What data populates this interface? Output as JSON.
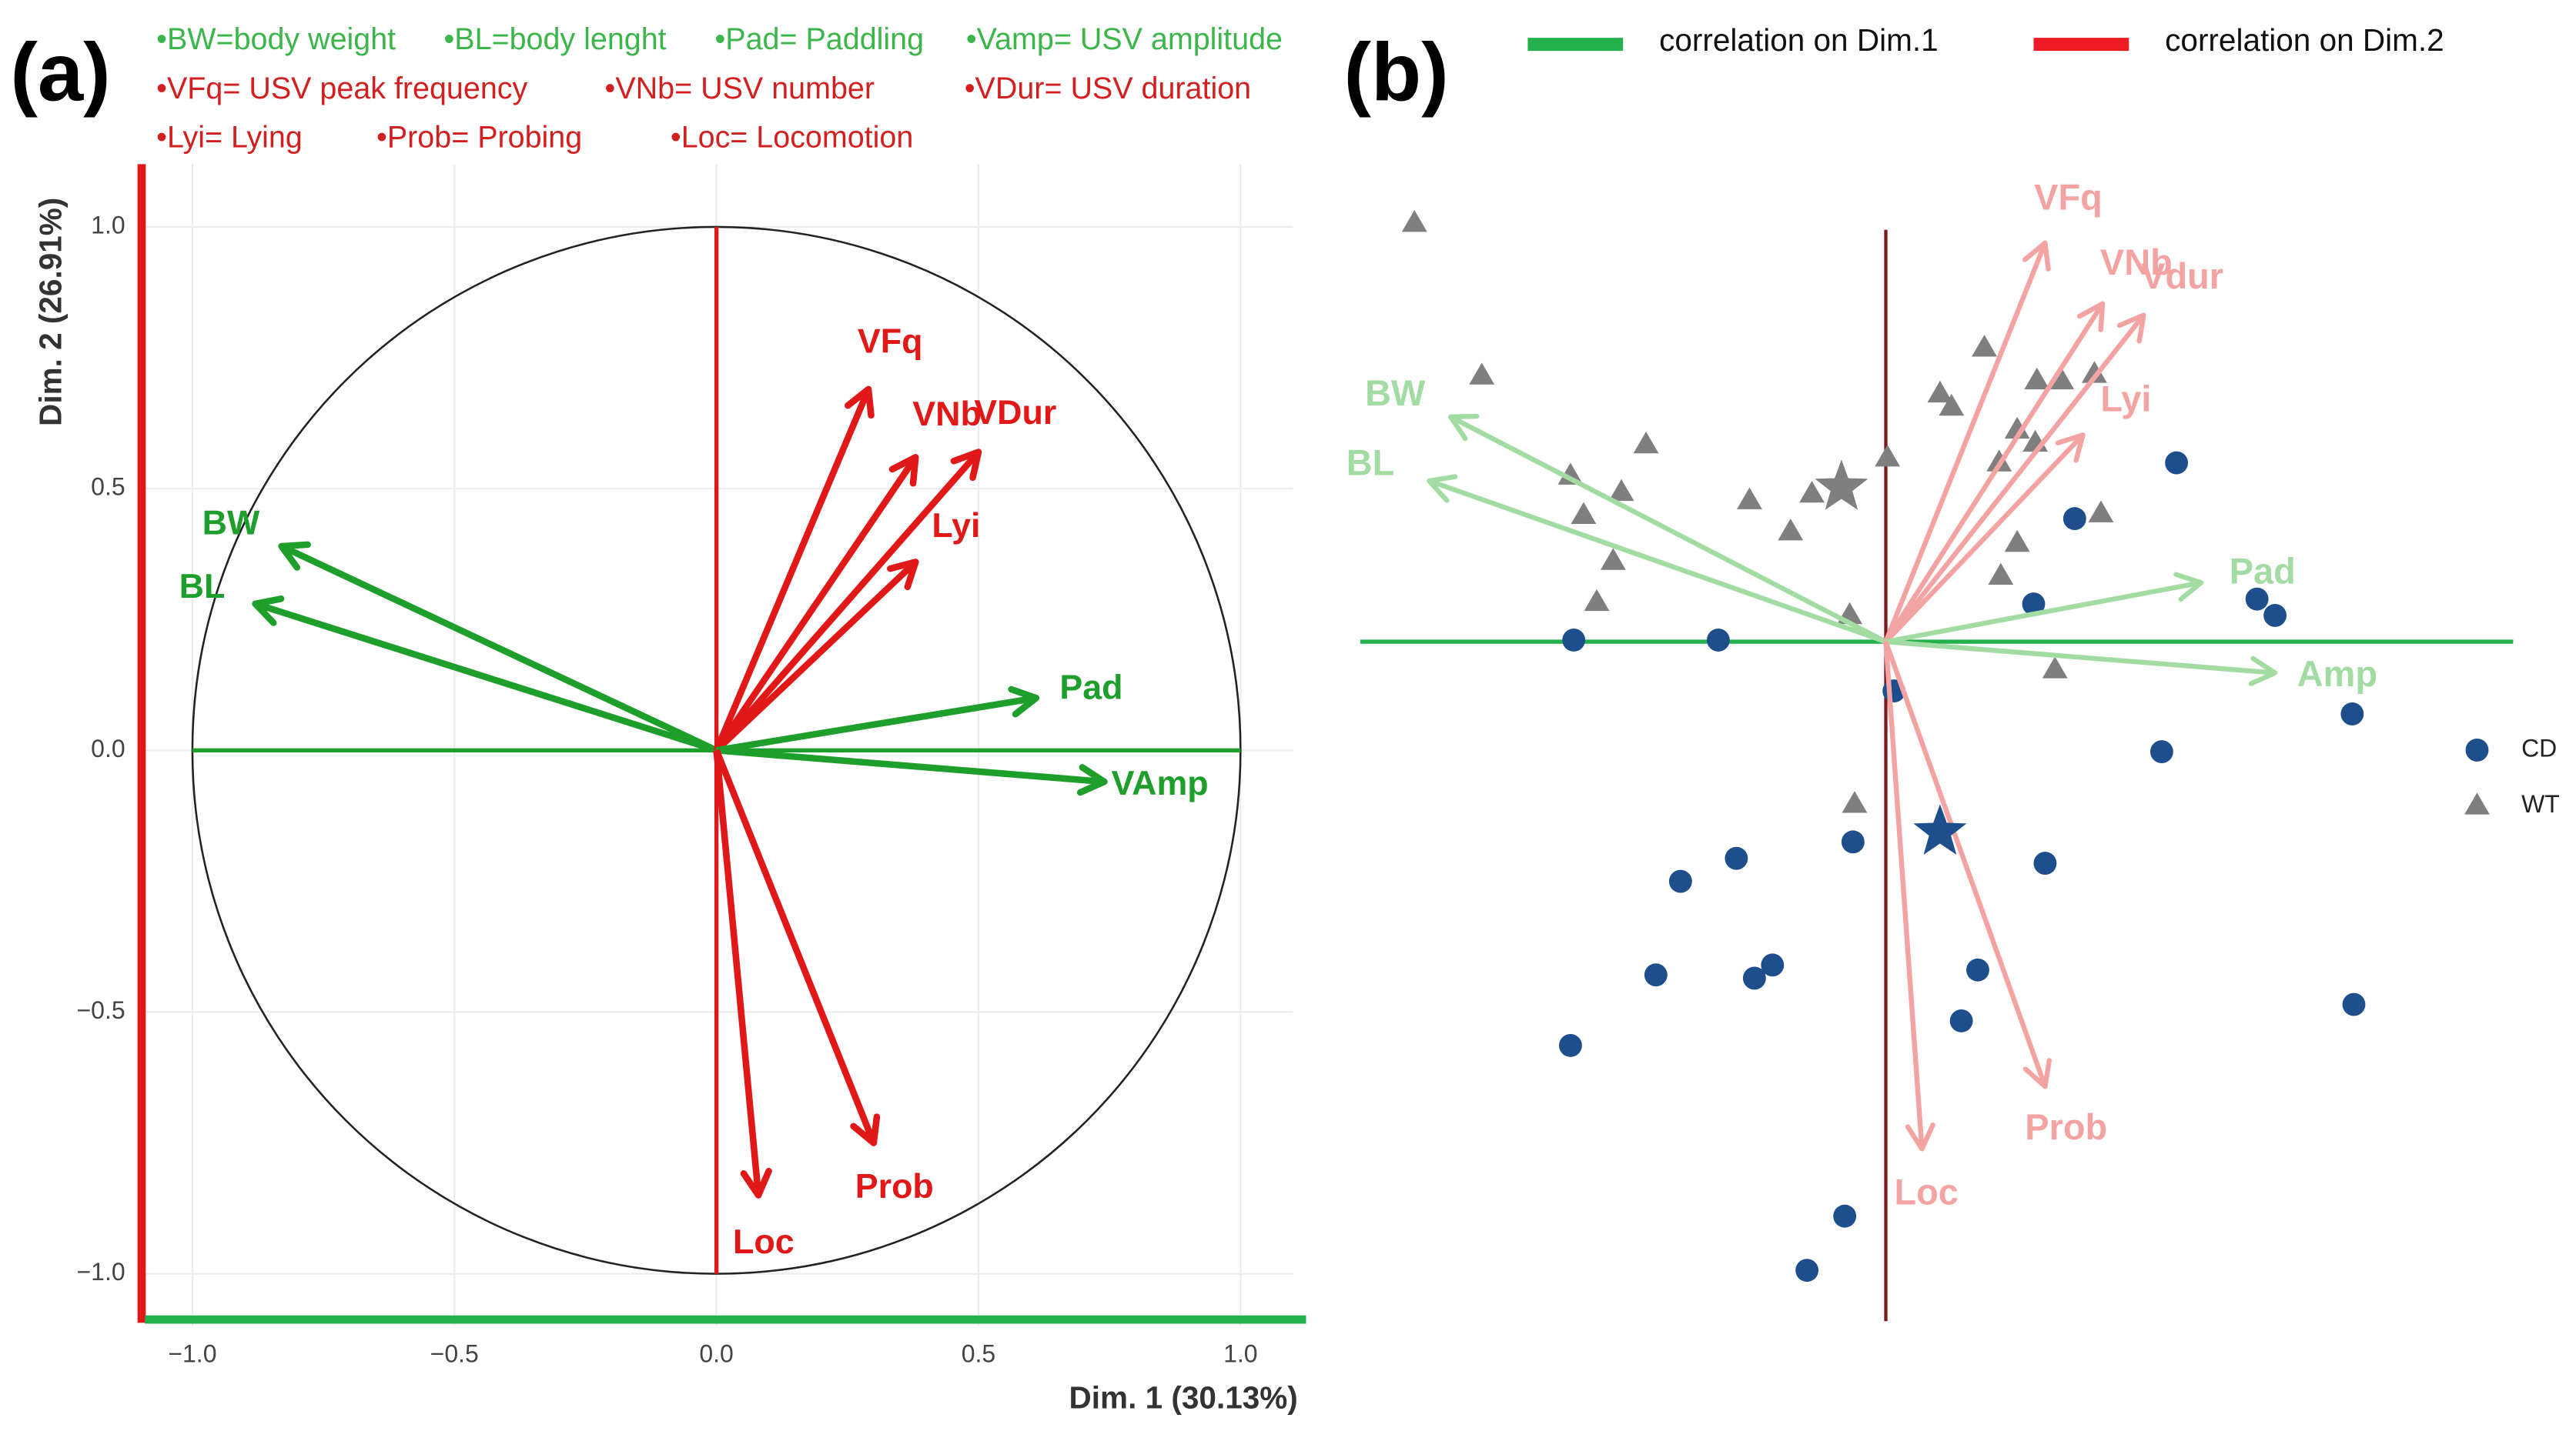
{
  "chart_data": [
    {
      "type": "vector",
      "panel": "(a)",
      "xlabel": "Dim. 1 (30.13%)",
      "ylabel": "Dim. 2 (26.91%)",
      "notes": [
        {
          "color": "#3cb54a",
          "items": [
            "•BW=body weight",
            "•BL=body lenght",
            "•Pad= Paddling",
            "•Vamp= USV amplitude"
          ]
        },
        {
          "color": "#d21f1f",
          "items": [
            "•VFq= USV peak frequency",
            "•VNb= USV number",
            "•VDur= USV duration"
          ]
        },
        {
          "color": "#d21f1f",
          "items": [
            "•Lyi= Lying",
            "•Prob= Probing",
            "•Loc= Locomotion"
          ]
        }
      ],
      "variables": [
        {
          "name": "BW",
          "x": -0.83,
          "y": 0.39,
          "color": "#1e9e2a"
        },
        {
          "name": "BL",
          "x": -0.88,
          "y": 0.28,
          "color": "#1e9e2a"
        },
        {
          "name": "VFq",
          "x": 0.29,
          "y": 0.69,
          "color": "#e01818"
        },
        {
          "name": "VNb",
          "x": 0.38,
          "y": 0.56,
          "color": "#e01818"
        },
        {
          "name": "VDur",
          "x": 0.5,
          "y": 0.57,
          "color": "#e01818"
        },
        {
          "name": "Lyi",
          "x": 0.38,
          "y": 0.36,
          "color": "#e01818"
        },
        {
          "name": "Pad",
          "x": 0.61,
          "y": 0.1,
          "color": "#1e9e2a"
        },
        {
          "name": "VAmp",
          "x": 0.74,
          "y": -0.06,
          "color": "#1e9e2a"
        },
        {
          "name": "Prob",
          "x": 0.3,
          "y": -0.75,
          "color": "#e01818"
        },
        {
          "name": "Loc",
          "x": 0.08,
          "y": -0.85,
          "color": "#e01818"
        }
      ],
      "xlim": [
        -1.1,
        1.1
      ],
      "ylim": [
        -1.1,
        1.12
      ],
      "xticks": [
        {
          "value": -1,
          "label": "−1.0"
        },
        {
          "value": -0.5,
          "label": "−0.5"
        },
        {
          "value": 0,
          "label": "0.0"
        },
        0.5,
        {
          "value": 1,
          "label": "1.0"
        }
      ],
      "yticks": [
        {
          "value": -1,
          "label": "−1.0"
        },
        {
          "value": -0.5,
          "label": "−0.5"
        },
        {
          "value": 0,
          "label": "0.0"
        },
        0.5,
        {
          "value": 1,
          "label": "1.0"
        }
      ]
    },
    {
      "type": "biplot",
      "panel": "(b)",
      "legend_lines": [
        {
          "name": "correlation on Dim.1",
          "color": "#22b14c"
        },
        {
          "name": "correlation on Dim.2",
          "color": "#ed1c24"
        }
      ],
      "series": [
        {
          "name": "CD",
          "marker": "circle",
          "color": "#1f4e8c",
          "x": [
            -1.9,
            -1.02,
            0.05,
            1.77,
            1.15,
            0.9,
            2.26,
            2.37,
            2.84,
            1.68,
            -0.2,
            0.97,
            -0.91,
            -1.25,
            -0.69,
            -0.8,
            -1.4,
            0.56,
            0.46,
            -1.92,
            2.85,
            -0.25,
            -0.48
          ],
          "y": [
            0.01,
            0.01,
            -0.3,
            1.09,
            0.75,
            0.23,
            0.26,
            0.16,
            -0.44,
            -0.67,
            -1.22,
            -1.35,
            -1.32,
            -1.46,
            -1.97,
            -2.05,
            -2.03,
            -2,
            -2.31,
            -2.46,
            -2.21,
            -3.5,
            -3.83
          ],
          "centroid": [
            0.33,
            -1.16
          ]
        },
        {
          "name": "WT",
          "marker": "triangle",
          "color": "#7f7f7f",
          "x": [
            -2.87,
            -2.46,
            -1.46,
            -1.92,
            -1.61,
            -1.84,
            -0.83,
            -0.45,
            -0.58,
            -1.66,
            -1.76,
            0.01,
            -0.22,
            0.6,
            0.33,
            0.4,
            0.92,
            1.07,
            1.27,
            0.8,
            0.91,
            0.69,
            0.8,
            0.7,
            1.31,
            1.03,
            -0.19
          ],
          "y": [
            2.55,
            1.62,
            1.2,
            1.01,
            0.91,
            0.77,
            0.86,
            0.9,
            0.67,
            0.49,
            0.24,
            1.12,
            0.16,
            1.79,
            1.51,
            1.43,
            1.59,
            1.59,
            1.63,
            1.29,
            1.21,
            1.09,
            0.6,
            0.4,
            0.78,
            -0.17,
            -0.99
          ],
          "centroid": [
            -0.27,
            0.94
          ]
        }
      ],
      "variables": [
        {
          "name": "BW",
          "x": -2.65,
          "y": 1.37,
          "color": "#a3dca3"
        },
        {
          "name": "BL",
          "x": -2.78,
          "y": 0.98,
          "color": "#a3dca3"
        },
        {
          "name": "VFq",
          "x": 0.97,
          "y": 2.43,
          "color": "#f4a3a3"
        },
        {
          "name": "VNb",
          "x": 1.32,
          "y": 2.06,
          "color": "#f4a3a3"
        },
        {
          "name": "Vdur",
          "x": 1.57,
          "y": 1.99,
          "color": "#f4a3a3"
        },
        {
          "name": "Lyi",
          "x": 1.2,
          "y": 1.26,
          "color": "#f4a3a3"
        },
        {
          "name": "Pad",
          "x": 1.92,
          "y": 0.36,
          "color": "#a3dca3"
        },
        {
          "name": "Amp",
          "x": 2.37,
          "y": -0.19,
          "color": "#a3dca3"
        },
        {
          "name": "Prob",
          "x": 0.97,
          "y": -2.71,
          "color": "#f4a3a3"
        },
        {
          "name": "Loc",
          "x": 0.22,
          "y": -3.09,
          "color": "#f4a3a3"
        }
      ],
      "xlim": [
        -3.2,
        3.82
      ],
      "ylim": [
        -4.14,
        2.91
      ]
    }
  ]
}
